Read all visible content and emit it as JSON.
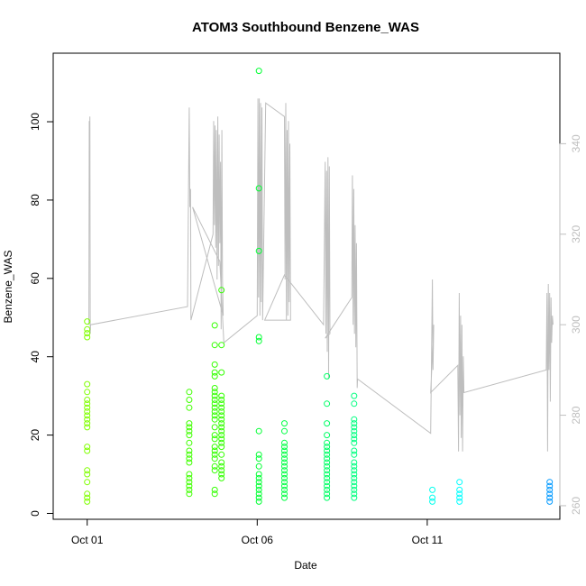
{
  "chart_data": {
    "type": "scatter",
    "title": "ATOM3 Southbound Benzene_WAS",
    "xlabel": "Date",
    "ylabel": "Benzene_WAS",
    "x_axis": {
      "unit": "days since Oct 01",
      "range": [
        -1.0,
        13.9
      ],
      "ticks": [
        {
          "value": 0,
          "label": "Oct 01"
        },
        {
          "value": 5,
          "label": "Oct 06"
        },
        {
          "value": 10,
          "label": "Oct 11"
        }
      ]
    },
    "y_left": {
      "range": [
        -1.5,
        117.5
      ],
      "ticks": [
        {
          "value": 0,
          "label": "0"
        },
        {
          "value": 20,
          "label": "20"
        },
        {
          "value": 40,
          "label": "40"
        },
        {
          "value": 60,
          "label": "60"
        },
        {
          "value": 80,
          "label": "80"
        },
        {
          "value": 100,
          "label": "100"
        }
      ]
    },
    "y_right": {
      "range": [
        257,
        360
      ],
      "color": "#bebebe",
      "ticks": [
        {
          "value": 260,
          "label": "260"
        },
        {
          "value": 280,
          "label": "280"
        },
        {
          "value": 300,
          "label": "300"
        },
        {
          "value": 320,
          "label": "320"
        },
        {
          "value": 340,
          "label": "340"
        }
      ]
    },
    "grid": false,
    "legend": "none",
    "point_groups": [
      {
        "x": 0.0,
        "color": "#80ff00",
        "values": [
          49,
          47,
          46,
          45,
          33,
          31,
          29,
          28,
          27,
          26,
          25,
          24,
          23,
          22,
          17,
          16,
          11,
          10,
          8,
          5,
          4,
          3
        ]
      },
      {
        "x": 3.0,
        "color": "#40ff00",
        "values": [
          31,
          29,
          27,
          23,
          22,
          21,
          20,
          18,
          16,
          15,
          14,
          13,
          10,
          9,
          8,
          7,
          6,
          5
        ]
      },
      {
        "x": 3.75,
        "color": "#33ff00",
        "values": [
          48,
          43,
          38,
          36,
          35,
          32,
          31,
          30,
          29,
          28,
          27,
          26,
          25,
          24,
          22,
          20,
          19,
          17,
          16,
          15,
          14,
          12,
          11,
          6,
          5
        ]
      },
      {
        "x": 3.95,
        "color": "#33ff00",
        "values": [
          57,
          43,
          36,
          30,
          29,
          28,
          27,
          26,
          25,
          24,
          23,
          22,
          21,
          20,
          19,
          18,
          17,
          15,
          13,
          12,
          11,
          10,
          9
        ]
      },
      {
        "x": 5.05,
        "color": "#00ff33",
        "values": [
          113,
          83,
          67,
          45,
          44,
          21,
          15,
          14,
          12,
          10,
          9,
          8,
          7,
          6,
          5,
          4,
          3
        ]
      },
      {
        "x": 5.8,
        "color": "#00ff44",
        "values": [
          23,
          21,
          18,
          17,
          16,
          15,
          14,
          13,
          12,
          11,
          10,
          9,
          8,
          7,
          6,
          5,
          4
        ]
      },
      {
        "x": 7.05,
        "color": "#00ff66",
        "values": [
          35,
          28,
          23,
          20,
          18,
          17,
          16,
          15,
          14,
          13,
          12,
          11,
          10,
          9,
          8,
          7,
          6,
          5,
          4
        ]
      },
      {
        "x": 7.85,
        "color": "#00ff80",
        "values": [
          30,
          28,
          24,
          23,
          22,
          21,
          20,
          19,
          18,
          16,
          15,
          13,
          12,
          11,
          10,
          9,
          8,
          7,
          6,
          5,
          4
        ]
      },
      {
        "x": 10.15,
        "color": "#00ffee",
        "values": [
          6,
          4,
          3
        ]
      },
      {
        "x": 10.95,
        "color": "#00ffff",
        "values": [
          8,
          6,
          5,
          4,
          3
        ]
      },
      {
        "x": 13.6,
        "color": "#0099ff",
        "values": [
          8,
          7,
          6,
          5,
          4,
          3
        ]
      }
    ],
    "line_series": {
      "axis": "right",
      "color": "#bebebe",
      "points": [
        [
          0.05,
          300
        ],
        [
          0.06,
          345
        ],
        [
          0.07,
          341
        ],
        [
          0.08,
          346
        ],
        [
          0.09,
          298
        ],
        [
          0.1,
          300
        ],
        [
          2.95,
          304
        ],
        [
          3.0,
          348
        ],
        [
          3.02,
          326
        ],
        [
          3.04,
          330
        ],
        [
          3.05,
          301
        ],
        [
          3.7,
          320
        ],
        [
          3.72,
          345
        ],
        [
          3.74,
          322
        ],
        [
          3.76,
          344
        ],
        [
          3.78,
          317
        ],
        [
          3.8,
          343
        ],
        [
          3.82,
          310
        ],
        [
          3.84,
          346
        ],
        [
          3.86,
          313
        ],
        [
          3.88,
          342
        ],
        [
          3.9,
          318
        ],
        [
          3.92,
          336
        ],
        [
          3.94,
          299
        ],
        [
          3.96,
          343
        ],
        [
          3.98,
          310
        ],
        [
          4.0,
          302
        ],
        [
          3.1,
          326
        ],
        [
          3.9,
          314
        ],
        [
          4.02,
          296
        ],
        [
          5.0,
          302
        ],
        [
          5.02,
          350
        ],
        [
          5.04,
          306
        ],
        [
          5.06,
          350
        ],
        [
          5.08,
          302
        ],
        [
          5.1,
          349
        ],
        [
          5.12,
          305
        ],
        [
          5.14,
          348
        ],
        [
          5.16,
          301
        ],
        [
          5.25,
          349
        ],
        [
          5.8,
          346
        ],
        [
          5.82,
          310
        ],
        [
          5.84,
          349
        ],
        [
          5.86,
          301
        ],
        [
          5.88,
          343
        ],
        [
          5.9,
          302
        ],
        [
          5.92,
          345
        ],
        [
          5.94,
          305
        ],
        [
          5.96,
          340
        ],
        [
          5.98,
          301
        ],
        [
          5.22,
          301
        ],
        [
          5.8,
          311
        ],
        [
          6.95,
          300
        ],
        [
          7.0,
          336
        ],
        [
          7.02,
          298
        ],
        [
          7.04,
          334
        ],
        [
          7.06,
          294
        ],
        [
          7.08,
          337
        ],
        [
          7.1,
          288
        ],
        [
          7.12,
          335
        ],
        [
          7.14,
          298
        ],
        [
          7.0,
          297
        ],
        [
          7.78,
          306
        ],
        [
          7.8,
          333
        ],
        [
          7.82,
          300
        ],
        [
          7.84,
          330
        ],
        [
          7.86,
          298
        ],
        [
          7.88,
          322
        ],
        [
          7.9,
          295
        ],
        [
          7.92,
          318
        ],
        [
          7.94,
          286
        ],
        [
          7.95,
          288
        ],
        [
          10.1,
          276
        ],
        [
          10.15,
          310
        ],
        [
          10.17,
          290
        ],
        [
          10.19,
          300
        ],
        [
          10.1,
          285
        ],
        [
          10.9,
          291
        ],
        [
          10.92,
          272
        ],
        [
          10.94,
          307
        ],
        [
          10.96,
          280
        ],
        [
          10.98,
          302
        ],
        [
          11.0,
          275
        ],
        [
          11.02,
          300
        ],
        [
          11.04,
          272
        ],
        [
          11.06,
          293
        ],
        [
          11.08,
          285
        ],
        [
          13.5,
          290
        ],
        [
          13.52,
          307
        ],
        [
          13.54,
          272
        ],
        [
          13.56,
          309
        ],
        [
          13.58,
          290
        ],
        [
          13.6,
          307
        ],
        [
          13.62,
          283
        ],
        [
          13.64,
          306
        ],
        [
          13.66,
          296
        ],
        [
          13.68,
          302
        ],
        [
          13.7,
          300
        ]
      ]
    }
  }
}
